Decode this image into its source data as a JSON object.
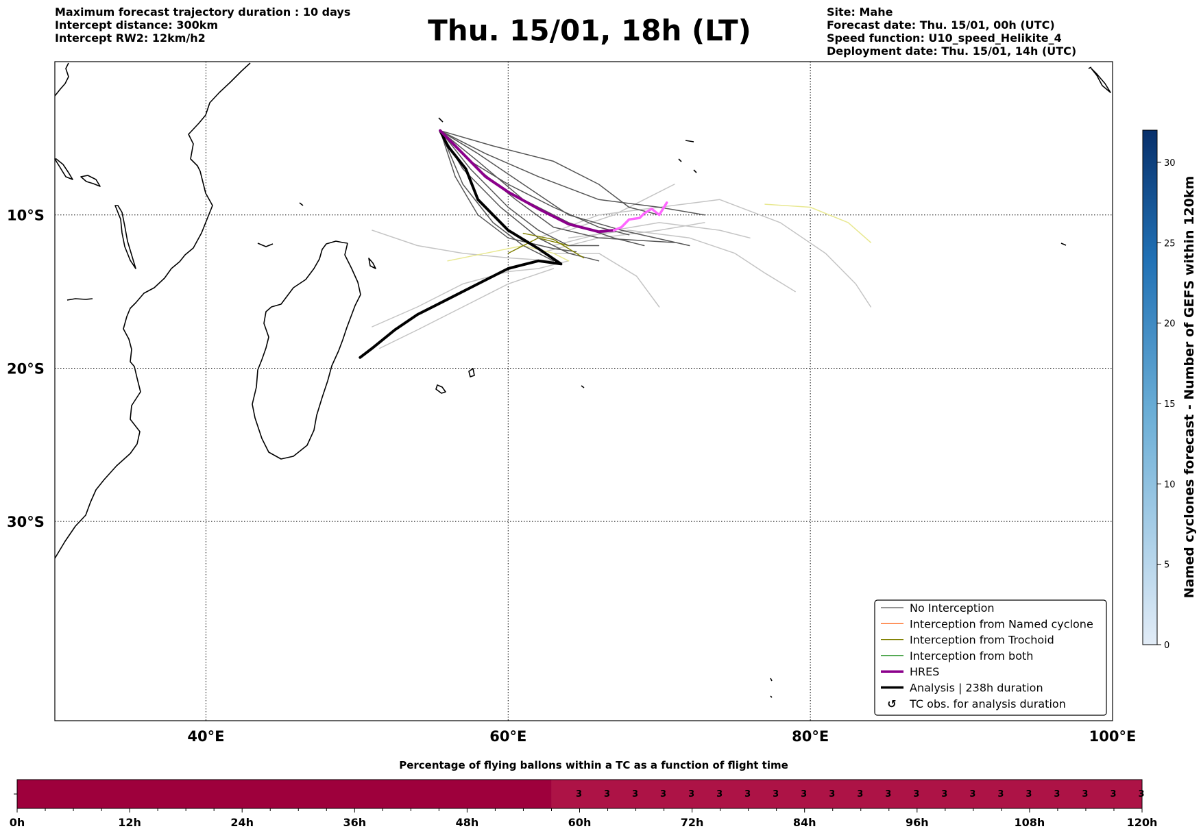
{
  "header": {
    "left": [
      "Maximum forecast trajectory duration : 10 days",
      "Intercept distance: 300km",
      "Intercept RW2: 12km/h2"
    ],
    "title": "Thu. 15/01, 18h (LT)",
    "right": [
      "Site: Mahe",
      "Forecast date: Thu. 15/01, 00h (UTC)",
      "Speed function: U10_speed_Helikite_4",
      "Deployment date: Thu. 15/01, 14h (UTC)"
    ]
  },
  "map": {
    "lon_range": [
      30,
      100
    ],
    "lat_range": [
      -43,
      0
    ],
    "lon_ticks": [
      {
        "value": 40,
        "label": "40°E"
      },
      {
        "value": 60,
        "label": "60°E"
      },
      {
        "value": 80,
        "label": "80°E"
      },
      {
        "value": 100,
        "label": "100°E"
      }
    ],
    "lat_ticks": [
      {
        "value": -10,
        "label": "10°S"
      },
      {
        "value": -20,
        "label": "20°S"
      },
      {
        "value": -30,
        "label": "30°S"
      }
    ],
    "grid": "dotted",
    "colors": {
      "coast": "#000000",
      "no_interception": "#555555",
      "light_member": "#c4c4c4",
      "yellow_member": "#e8e890",
      "trochoid": "#808000",
      "hres": "#8b008b",
      "hres_recent": "#ff66ff",
      "analysis": "#000000"
    },
    "tracks": {
      "analysis": [
        [
          50.2,
          -19.3
        ],
        [
          51,
          -18.7
        ],
        [
          52.5,
          -17.5
        ],
        [
          54,
          -16.5
        ],
        [
          56,
          -15.5
        ],
        [
          58,
          -14.5
        ],
        [
          60,
          -13.5
        ],
        [
          62,
          -13
        ],
        [
          63.5,
          -13.2
        ],
        [
          62,
          -12.2
        ],
        [
          60,
          -11
        ],
        [
          58,
          -9
        ],
        [
          57.2,
          -7
        ],
        [
          56,
          -5.5
        ],
        [
          55.5,
          -4.5
        ]
      ],
      "hres": [
        [
          55.5,
          -4.5
        ],
        [
          57,
          -6
        ],
        [
          58.5,
          -7.5
        ],
        [
          60,
          -8.5
        ],
        [
          62,
          -9.6
        ],
        [
          64,
          -10.6
        ],
        [
          66,
          -11.1
        ],
        [
          67,
          -11
        ]
      ],
      "hres_recent": [
        [
          67,
          -11
        ],
        [
          67.5,
          -10.8
        ],
        [
          68,
          -10.3
        ],
        [
          68.7,
          -10.2
        ],
        [
          69,
          -9.9
        ],
        [
          69.5,
          -9.6
        ],
        [
          70,
          -10
        ],
        [
          70.5,
          -9.2
        ]
      ],
      "no_interception": [
        [
          [
            55.5,
            -4.5
          ],
          [
            58,
            -6.5
          ],
          [
            61,
            -9
          ],
          [
            64,
            -10.5
          ],
          [
            67,
            -11.5
          ],
          [
            69,
            -12
          ]
        ],
        [
          [
            55.5,
            -4.5
          ],
          [
            57.5,
            -7
          ],
          [
            60,
            -9.5
          ],
          [
            62,
            -11
          ],
          [
            64,
            -12
          ],
          [
            66,
            -12
          ]
        ],
        [
          [
            55.5,
            -4.5
          ],
          [
            58.5,
            -6
          ],
          [
            62,
            -7.5
          ],
          [
            66,
            -9
          ],
          [
            70,
            -9.5
          ],
          [
            73,
            -10
          ]
        ],
        [
          [
            55.5,
            -4.5
          ],
          [
            59,
            -5.5
          ],
          [
            63,
            -6.5
          ],
          [
            66,
            -8
          ],
          [
            68,
            -9.5
          ],
          [
            70,
            -10
          ]
        ],
        [
          [
            55.5,
            -4.5
          ],
          [
            57,
            -8
          ],
          [
            59,
            -10.5
          ],
          [
            61,
            -12
          ],
          [
            63,
            -13
          ]
        ],
        [
          [
            55.5,
            -4.5
          ],
          [
            58,
            -7
          ],
          [
            60.5,
            -9
          ],
          [
            63,
            -10.8
          ],
          [
            66,
            -11.5
          ],
          [
            71,
            -11.8
          ]
        ],
        [
          [
            55.5,
            -4.5
          ],
          [
            57.5,
            -6.5
          ],
          [
            60,
            -8
          ],
          [
            63,
            -9.5
          ],
          [
            66,
            -10.8
          ],
          [
            68,
            -11.3
          ]
        ],
        [
          [
            55.5,
            -4.5
          ],
          [
            58,
            -6
          ],
          [
            61,
            -8
          ],
          [
            64,
            -10
          ],
          [
            67.5,
            -11
          ],
          [
            72,
            -12
          ]
        ],
        [
          [
            55.5,
            -4.5
          ],
          [
            56.5,
            -7.5
          ],
          [
            58,
            -10
          ],
          [
            60,
            -11.5
          ],
          [
            63,
            -12.2
          ],
          [
            64.5,
            -12.4
          ]
        ],
        [
          [
            55.5,
            -4.5
          ],
          [
            57,
            -7
          ],
          [
            59.5,
            -9.5
          ],
          [
            62,
            -11.5
          ],
          [
            64,
            -12.5
          ],
          [
            66,
            -13
          ]
        ]
      ],
      "light_members": [
        [
          [
            51,
            -11
          ],
          [
            54,
            -12
          ],
          [
            57,
            -12.5
          ],
          [
            60,
            -12.8
          ],
          [
            63,
            -13
          ]
        ],
        [
          [
            51,
            -17.3
          ],
          [
            54,
            -16
          ],
          [
            57,
            -14.5
          ],
          [
            60,
            -13.7
          ],
          [
            62,
            -13.5
          ],
          [
            64,
            -13
          ]
        ],
        [
          [
            51.5,
            -18.7
          ],
          [
            54,
            -17.5
          ],
          [
            57,
            -16
          ],
          [
            60,
            -14.5
          ],
          [
            63,
            -13.5
          ]
        ],
        [
          [
            62,
            -11.5
          ],
          [
            66,
            -10
          ],
          [
            70,
            -9.5
          ],
          [
            74,
            -9
          ],
          [
            78,
            -10.5
          ],
          [
            81,
            -12.5
          ],
          [
            83,
            -14.5
          ],
          [
            84,
            -16
          ]
        ],
        [
          [
            64,
            -11.5
          ],
          [
            68,
            -11
          ],
          [
            72,
            -11.5
          ],
          [
            75,
            -12.5
          ],
          [
            77,
            -13.8
          ],
          [
            79,
            -15
          ]
        ],
        [
          [
            63,
            -12
          ],
          [
            67,
            -11
          ],
          [
            70,
            -10.5
          ],
          [
            74,
            -11
          ],
          [
            76,
            -11.5
          ]
        ],
        [
          [
            63,
            -12.5
          ],
          [
            66,
            -12.5
          ],
          [
            68.5,
            -14
          ],
          [
            70,
            -16
          ]
        ],
        [
          [
            64,
            -11
          ],
          [
            67,
            -10
          ],
          [
            69,
            -9
          ],
          [
            71,
            -8
          ]
        ],
        [
          [
            62,
            -12.5
          ],
          [
            66,
            -11.5
          ],
          [
            70,
            -11
          ],
          [
            73,
            -10.5
          ]
        ]
      ],
      "yellow_members": [
        [
          [
            56,
            -13
          ],
          [
            58.5,
            -12.5
          ],
          [
            61,
            -12
          ],
          [
            63,
            -12.5
          ],
          [
            64,
            -13
          ]
        ],
        [
          [
            77,
            -9.3
          ],
          [
            80,
            -9.5
          ],
          [
            82.5,
            -10.5
          ],
          [
            84,
            -11.8
          ]
        ]
      ],
      "trochoid_members": [
        [
          [
            60,
            -12.5
          ],
          [
            62,
            -11.5
          ],
          [
            64,
            -12
          ]
        ],
        [
          [
            61,
            -11.2
          ],
          [
            63,
            -11.6
          ],
          [
            65,
            -12.8
          ]
        ]
      ]
    }
  },
  "legend": {
    "items": [
      {
        "label": "No Interception",
        "color": "#555555",
        "width": 1.2,
        "kind": "line"
      },
      {
        "label": "Interception from Named cyclone",
        "color": "#ff5500",
        "width": 1.2,
        "kind": "line"
      },
      {
        "label": "Interception from Trochoid",
        "color": "#808000",
        "width": 1.2,
        "kind": "line"
      },
      {
        "label": "Interception from both",
        "color": "#008000",
        "width": 1.2,
        "kind": "line"
      },
      {
        "label": "HRES",
        "color": "#8b008b",
        "width": 3.5,
        "kind": "line"
      },
      {
        "label": "Analysis | 238h duration",
        "color": "#000000",
        "width": 3.5,
        "kind": "line"
      },
      {
        "label": "TC obs. for analysis duration",
        "color": "#000000",
        "width": 0,
        "kind": "marker",
        "symbol": "↺"
      }
    ]
  },
  "colorbar": {
    "label": "Named cyclones forecast - Number of GEFS within 120km",
    "min": 0,
    "max": 32,
    "ticks": [
      0,
      5,
      10,
      15,
      20,
      25,
      30
    ],
    "color_low": "#e2ecf7",
    "color_high": "#08306b"
  },
  "chart_data": {
    "type": "heatmap",
    "title": "Percentage of flying ballons within a TC as a function of flight time",
    "x_unit": "h",
    "x_range": [
      0,
      120
    ],
    "tick_labels": [
      "0h",
      "12h",
      "24h",
      "36h",
      "48h",
      "60h",
      "72h",
      "84h",
      "96h",
      "108h",
      "120h"
    ],
    "bin_hours": 3,
    "first_valued_bin_start": 57,
    "value_labels": [
      3,
      3,
      3,
      3,
      3,
      3,
      3,
      3,
      3,
      3,
      3,
      3,
      3,
      3,
      3,
      3,
      3,
      3,
      3,
      3,
      3
    ],
    "colors": {
      "zero": "#9e003c",
      "low": "#ad1346"
    }
  }
}
